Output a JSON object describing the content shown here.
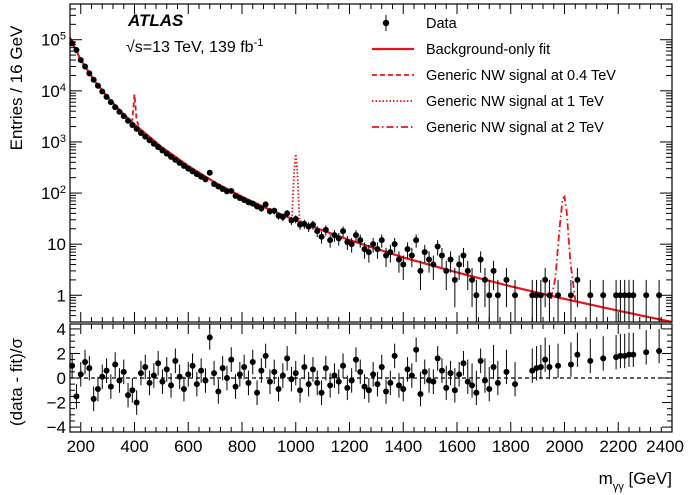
{
  "labels": {
    "experiment": "ATLAS",
    "sqrt": "√",
    "energy_text": "s=13 TeV, 139 fb",
    "energy_sup": "-1"
  },
  "axes": {
    "ylabel_main": "Entries / 16 GeV",
    "ylabel_ratio": "(data - fit)/σ",
    "xlabel_m": "m",
    "xlabel_sub": "γγ",
    "xlabel_unit": " [GeV]"
  },
  "legend": [
    {
      "label": "Data",
      "style": "marker"
    },
    {
      "label": "Background-only fit",
      "style": "solid"
    },
    {
      "label": "Generic NW signal at 0.4 TeV",
      "style": "dashed"
    },
    {
      "label": "Generic NW signal at 1 TeV",
      "style": "dotted"
    },
    {
      "label": "Generic NW signal at 2 TeV",
      "style": "dashdot"
    }
  ],
  "colors": {
    "fit": "#e8141b",
    "data": "#000000",
    "baseline": "#000000"
  },
  "chart_data": {
    "type": "scatter",
    "xlim": [
      160,
      2400
    ],
    "ylim": [
      0.3,
      500000
    ],
    "yscale": "log",
    "ratio_ylim": [
      -4.4,
      4.4
    ],
    "x_ticks": [
      200,
      400,
      600,
      800,
      1000,
      1200,
      1400,
      1600,
      1800,
      2000,
      2200,
      2400
    ],
    "y_ticks": [
      {
        "v": 1,
        "label": "1"
      },
      {
        "v": 10,
        "label": "10"
      },
      {
        "v": 100,
        "label": "10",
        "exp": "2"
      },
      {
        "v": 1000,
        "label": "10",
        "exp": "3"
      },
      {
        "v": 10000,
        "label": "10",
        "exp": "4"
      },
      {
        "v": 100000,
        "label": "10",
        "exp": "5"
      }
    ],
    "ratio_ticks": [
      -4,
      -2,
      0,
      2,
      4
    ],
    "background_fit": [
      [
        160,
        110000
      ],
      [
        200,
        40000
      ],
      [
        250,
        16000
      ],
      [
        300,
        7500
      ],
      [
        350,
        3900
      ],
      [
        400,
        2200
      ],
      [
        500,
        800
      ],
      [
        600,
        340
      ],
      [
        700,
        160
      ],
      [
        800,
        85
      ],
      [
        900,
        48
      ],
      [
        1000,
        29
      ],
      [
        1200,
        12
      ],
      [
        1400,
        5.5
      ],
      [
        1600,
        2.8
      ],
      [
        1800,
        1.5
      ],
      [
        2000,
        0.85
      ],
      [
        2200,
        0.5
      ],
      [
        2400,
        0.3
      ]
    ],
    "signals": [
      {
        "mass": 400,
        "style": "dashed",
        "points": [
          [
            384,
            2400
          ],
          [
            392,
            2700
          ],
          [
            397,
            5500
          ],
          [
            400,
            8500
          ],
          [
            403,
            5500
          ],
          [
            408,
            2650
          ],
          [
            416,
            2100
          ]
        ]
      },
      {
        "mass": 1000,
        "style": "dotted",
        "points": [
          [
            976,
            32
          ],
          [
            986,
            36
          ],
          [
            994,
            260
          ],
          [
            1000,
            580
          ],
          [
            1006,
            250
          ],
          [
            1014,
            30
          ],
          [
            1024,
            27
          ]
        ]
      },
      {
        "mass": 2000,
        "style": "dashdot",
        "points": [
          [
            1950,
            0.85
          ],
          [
            1966,
            2.2
          ],
          [
            1982,
            22
          ],
          [
            1993,
            78
          ],
          [
            2000,
            85
          ],
          [
            2008,
            45
          ],
          [
            2022,
            4.5
          ],
          [
            2040,
            0.8
          ]
        ]
      }
    ],
    "data": [
      [
        168,
        85000,
        1.0
      ],
      [
        184,
        63000,
        -1.5
      ],
      [
        200,
        40000,
        0.3
      ],
      [
        216,
        30000,
        1.3
      ],
      [
        232,
        22000,
        0.8
      ],
      [
        248,
        16500,
        -1.7
      ],
      [
        264,
        12600,
        -0.9
      ],
      [
        280,
        9700,
        0.1
      ],
      [
        296,
        7600,
        0.6
      ],
      [
        312,
        6000,
        -0.7
      ],
      [
        328,
        4800,
        1.1
      ],
      [
        344,
        3900,
        -0.2
      ],
      [
        360,
        3200,
        0.5
      ],
      [
        376,
        2600,
        -1.4
      ],
      [
        392,
        2150,
        -1.0
      ],
      [
        408,
        1800,
        -2.0
      ],
      [
        424,
        1500,
        0.4
      ],
      [
        440,
        1270,
        0.9
      ],
      [
        456,
        1080,
        -0.4
      ],
      [
        472,
        920,
        0.2
      ],
      [
        488,
        790,
        1.2
      ],
      [
        504,
        680,
        -0.3
      ],
      [
        520,
        590,
        0.7
      ],
      [
        536,
        510,
        -0.6
      ],
      [
        552,
        445,
        1.4
      ],
      [
        568,
        390,
        0.1
      ],
      [
        584,
        340,
        -0.9
      ],
      [
        600,
        300,
        0.3
      ],
      [
        616,
        265,
        1.0
      ],
      [
        632,
        235,
        -0.5
      ],
      [
        648,
        208,
        0.6
      ],
      [
        664,
        185,
        -0.2
      ],
      [
        680,
        250,
        3.3
      ],
      [
        696,
        150,
        0.4
      ],
      [
        712,
        134,
        -1.1
      ],
      [
        728,
        120,
        0.8
      ],
      [
        744,
        108,
        0.0
      ],
      [
        760,
        110,
        1.5
      ],
      [
        776,
        88,
        -0.7
      ],
      [
        792,
        80,
        0.3
      ],
      [
        808,
        73,
        0.9
      ],
      [
        824,
        66,
        -0.4
      ],
      [
        840,
        62,
        1.3
      ],
      [
        856,
        55,
        -1.2
      ],
      [
        872,
        50,
        0.6
      ],
      [
        888,
        60,
        1.8
      ],
      [
        904,
        44,
        -0.3
      ],
      [
        920,
        45,
        0.5
      ],
      [
        936,
        36,
        -0.9
      ],
      [
        952,
        34,
        0.2
      ],
      [
        968,
        40,
        1.6
      ],
      [
        984,
        29,
        -0.1
      ],
      [
        1000,
        31,
        0.4
      ],
      [
        1016,
        24,
        -1.0
      ],
      [
        1032,
        25,
        0.9
      ],
      [
        1048,
        22,
        -0.5
      ],
      [
        1064,
        24,
        0.7
      ],
      [
        1080,
        18,
        -0.4
      ],
      [
        1096,
        14,
        -1.2
      ],
      [
        1112,
        19,
        0.8
      ],
      [
        1128,
        12,
        -0.6
      ],
      [
        1144,
        15,
        0.2
      ],
      [
        1160,
        13,
        -0.3
      ],
      [
        1176,
        18,
        1.0
      ],
      [
        1192,
        11,
        -0.8
      ],
      [
        1208,
        10,
        -0.2
      ],
      [
        1224,
        15,
        1.5
      ],
      [
        1240,
        12,
        0.5
      ],
      [
        1256,
        8,
        -0.7
      ],
      [
        1272,
        7,
        -1.0
      ],
      [
        1288,
        10,
        0.3
      ],
      [
        1304,
        8,
        -0.5
      ],
      [
        1320,
        12,
        0.9
      ],
      [
        1336,
        6,
        -1.1
      ],
      [
        1352,
        7,
        -0.4
      ],
      [
        1368,
        10,
        1.8
      ],
      [
        1384,
        5,
        -0.6
      ],
      [
        1400,
        4,
        -0.9
      ],
      [
        1416,
        8,
        0.7
      ],
      [
        1432,
        6,
        0.2
      ],
      [
        1448,
        12,
        2.3
      ],
      [
        1464,
        3,
        -1.3
      ],
      [
        1480,
        7,
        0.5
      ],
      [
        1496,
        5,
        -0.2
      ],
      [
        1512,
        4,
        -0.3
      ],
      [
        1528,
        9,
        1.6
      ],
      [
        1544,
        6,
        0.6
      ],
      [
        1560,
        3,
        -0.8
      ],
      [
        1576,
        5,
        0.4
      ],
      [
        1592,
        2,
        -1.0
      ],
      [
        1608,
        4,
        0.3
      ],
      [
        1624,
        6,
        1.2
      ],
      [
        1640,
        3,
        -0.3
      ],
      [
        1656,
        2,
        -0.6
      ],
      [
        1672,
        1,
        -1.2
      ],
      [
        1688,
        5,
        1.4
      ],
      [
        1704,
        2,
        -0.2
      ],
      [
        1720,
        1,
        -0.9
      ],
      [
        1736,
        3,
        0.9
      ],
      [
        1752,
        1,
        -0.4
      ],
      [
        1784,
        2,
        0.5
      ],
      [
        1816,
        1,
        -0.5
      ],
      [
        1880,
        1,
        0.6
      ],
      [
        1896,
        1,
        0.8
      ],
      [
        1912,
        1,
        0.9
      ],
      [
        1928,
        2,
        1.5
      ],
      [
        1944,
        1,
        0.9
      ],
      [
        1976,
        1,
        1.0
      ],
      [
        2024,
        1,
        1.1
      ],
      [
        2048,
        2,
        1.9
      ],
      [
        2096,
        1,
        1.4
      ],
      [
        2144,
        1,
        1.6
      ],
      [
        2192,
        1,
        1.7
      ],
      [
        2208,
        1,
        1.8
      ],
      [
        2224,
        1,
        1.8
      ],
      [
        2240,
        1,
        1.9
      ],
      [
        2256,
        1,
        1.9
      ],
      [
        2304,
        1,
        2.1
      ],
      [
        2352,
        1,
        2.2
      ]
    ]
  }
}
